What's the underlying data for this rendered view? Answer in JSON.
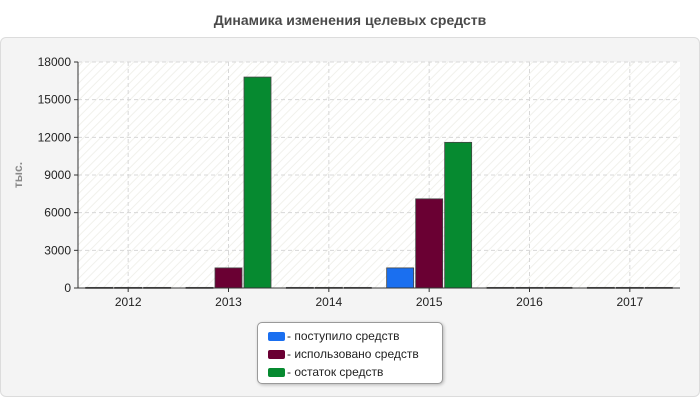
{
  "chart_data": {
    "type": "bar",
    "title": "Динамика изменения целевых средств",
    "xlabel": "",
    "ylabel": "тыс.",
    "ylim": [
      0,
      18000
    ],
    "yticks": [
      "0",
      "3000",
      "6000",
      "9000",
      "12000",
      "15000",
      "18000"
    ],
    "categories": [
      "2012",
      "2013",
      "2014",
      "2015",
      "2016",
      "2017"
    ],
    "series": [
      {
        "name": "поступило средств",
        "color": "#1a6ff0",
        "values": [
          50,
          50,
          50,
          1600,
          50,
          50
        ]
      },
      {
        "name": "использовано средств",
        "color": "#6a0033",
        "values": [
          50,
          1600,
          50,
          7100,
          50,
          50
        ]
      },
      {
        "name": "остаток средств",
        "color": "#068a30",
        "values": [
          50,
          16800,
          50,
          11600,
          50,
          50
        ]
      }
    ],
    "grid": true,
    "legend_position": "bottom-center"
  }
}
